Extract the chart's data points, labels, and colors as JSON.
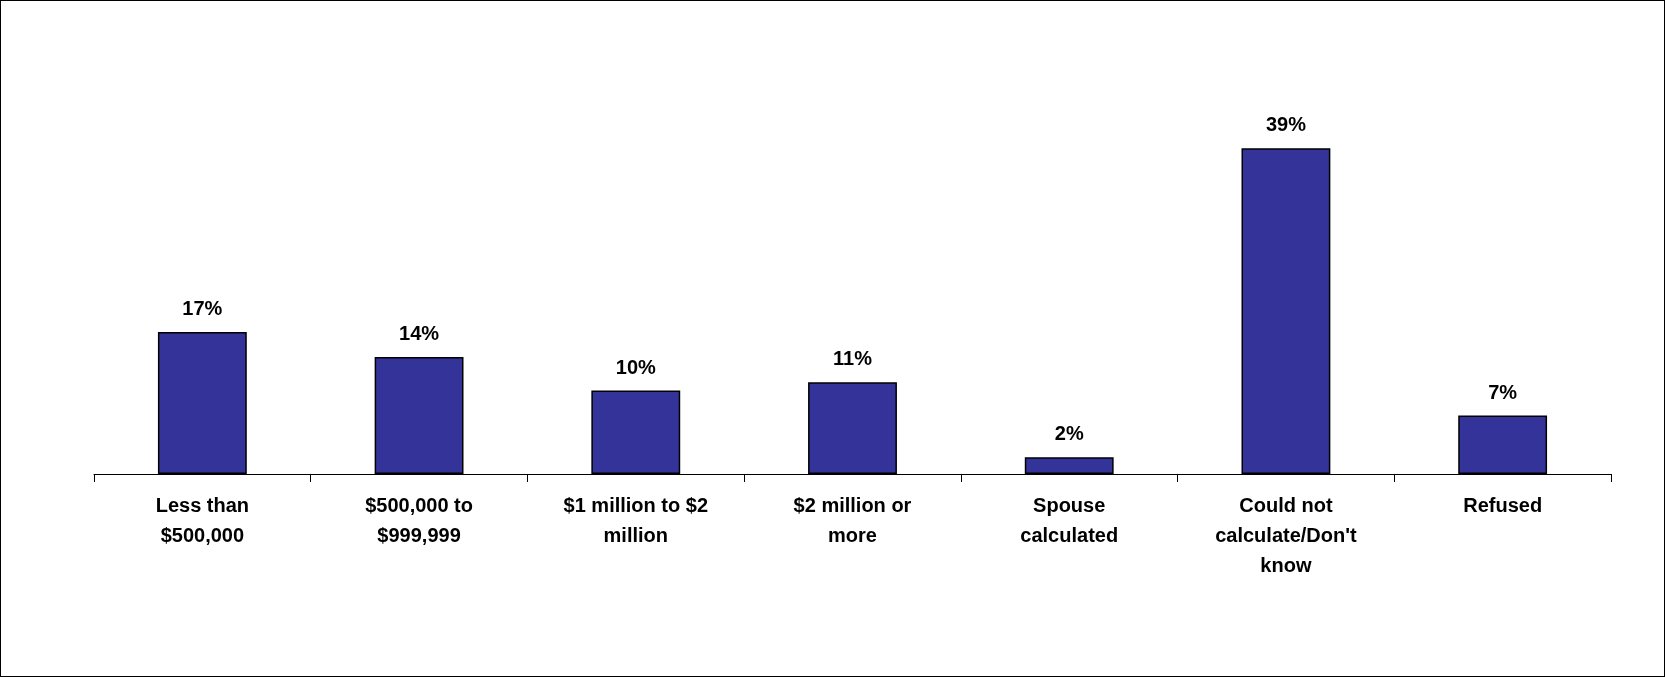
{
  "chart_data": {
    "type": "bar",
    "categories": [
      "Less than $500,000",
      "$500,000 to $999,999",
      "$1 million to $2 million",
      "$2 million or more",
      "Spouse calculated",
      "Could not calculate/Don't know",
      "Refused"
    ],
    "values": [
      17,
      14,
      10,
      11,
      2,
      39,
      7
    ],
    "value_labels": [
      "17%",
      "14%",
      "10%",
      "11%",
      "2%",
      "39%",
      "7%"
    ],
    "color": "#333399"
  }
}
